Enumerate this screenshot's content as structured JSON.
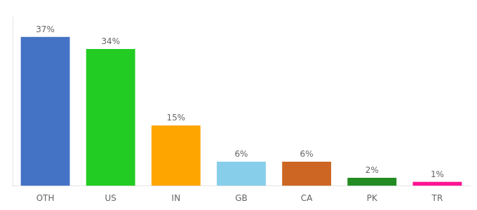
{
  "chart_data": {
    "type": "bar",
    "categories": [
      "OTH",
      "US",
      "IN",
      "GB",
      "CA",
      "PK",
      "TR"
    ],
    "values": [
      37,
      34,
      15,
      6,
      6,
      2,
      1
    ],
    "value_labels": [
      "37%",
      "34%",
      "15%",
      "6%",
      "6%",
      "2%",
      "1%"
    ],
    "colors": [
      "#4472C4",
      "#22CC22",
      "#FFA500",
      "#87CEEB",
      "#CC6622",
      "#228B22",
      "#FF1493"
    ],
    "ylim": [
      0,
      42
    ],
    "data_labels": true,
    "tick_labels": "x",
    "grid": false
  }
}
